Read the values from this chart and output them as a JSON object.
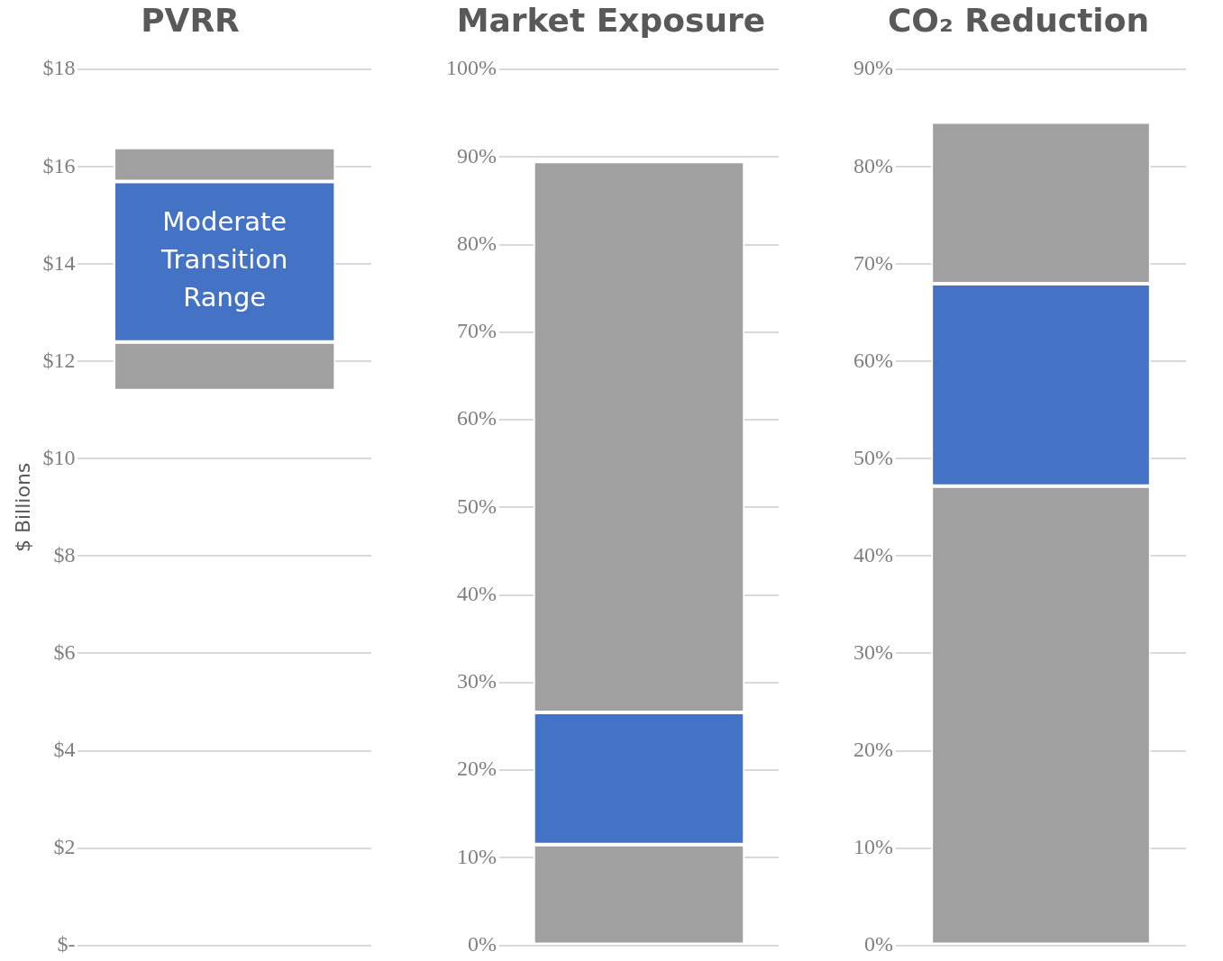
{
  "chart_data": [
    {
      "type": "bar",
      "title": "PVRR",
      "ylabel": "$ Billions",
      "categories": [
        null
      ],
      "series": [
        {
          "color": "#a0a0a0",
          "base": [
            11.4
          ],
          "values": [
            1.0
          ]
        },
        {
          "color": "#4472c4",
          "base": [
            12.4
          ],
          "values": [
            3.3
          ]
        },
        {
          "color": "#a0a0a0",
          "base": [
            15.7
          ],
          "values": [
            0.7
          ]
        }
      ],
      "ylim": [
        0,
        18
      ],
      "yticks": [
        {
          "value": 0,
          "label": "$-"
        },
        {
          "value": 2,
          "label": "$2"
        },
        {
          "value": 4,
          "label": "$4"
        },
        {
          "value": 6,
          "label": "$6"
        },
        {
          "value": 8,
          "label": "$8"
        },
        {
          "value": 10,
          "label": "$10"
        },
        {
          "value": 12,
          "label": "$12"
        },
        {
          "value": 14,
          "label": "$14"
        },
        {
          "value": 16,
          "label": "$16"
        },
        {
          "value": 18,
          "label": "$18"
        }
      ],
      "grid": "y",
      "tick_labels": "y",
      "annotations": [
        "Moderate Transition Range"
      ]
    },
    {
      "type": "bar",
      "title": "Market Exposure",
      "categories": [
        null
      ],
      "stacked": true,
      "series": [
        {
          "color": "#a0a0a0",
          "values": [
            11.5
          ]
        },
        {
          "color": "#4472c4",
          "values": [
            15.1
          ]
        },
        {
          "color": "#a0a0a0",
          "values": [
            62.9
          ]
        }
      ],
      "ylim": [
        0,
        100
      ],
      "yticks": [
        {
          "value": 0,
          "label": "0%"
        },
        {
          "value": 10,
          "label": "10%"
        },
        {
          "value": 20,
          "label": "20%"
        },
        {
          "value": 30,
          "label": "30%"
        },
        {
          "value": 40,
          "label": "40%"
        },
        {
          "value": 50,
          "label": "50%"
        },
        {
          "value": 60,
          "label": "60%"
        },
        {
          "value": 70,
          "label": "70%"
        },
        {
          "value": 80,
          "label": "80%"
        },
        {
          "value": 90,
          "label": "90%"
        },
        {
          "value": 100,
          "label": "100%"
        }
      ],
      "grid": "y",
      "tick_labels": "y"
    },
    {
      "type": "bar",
      "title": "CO₂ Reduction",
      "categories": [
        null
      ],
      "stacked": true,
      "series": [
        {
          "color": "#a0a0a0",
          "values": [
            47.2
          ]
        },
        {
          "color": "#4472c4",
          "values": [
            20.8
          ]
        },
        {
          "color": "#a0a0a0",
          "values": [
            16.6
          ]
        }
      ],
      "ylim": [
        0,
        90
      ],
      "yticks": [
        {
          "value": 0,
          "label": "0%"
        },
        {
          "value": 10,
          "label": "10%"
        },
        {
          "value": 20,
          "label": "20%"
        },
        {
          "value": 30,
          "label": "30%"
        },
        {
          "value": 40,
          "label": "40%"
        },
        {
          "value": 50,
          "label": "50%"
        },
        {
          "value": 60,
          "label": "60%"
        },
        {
          "value": 70,
          "label": "70%"
        },
        {
          "value": 80,
          "label": "80%"
        },
        {
          "value": 90,
          "label": "90%"
        }
      ],
      "grid": "y",
      "tick_labels": "y"
    }
  ]
}
